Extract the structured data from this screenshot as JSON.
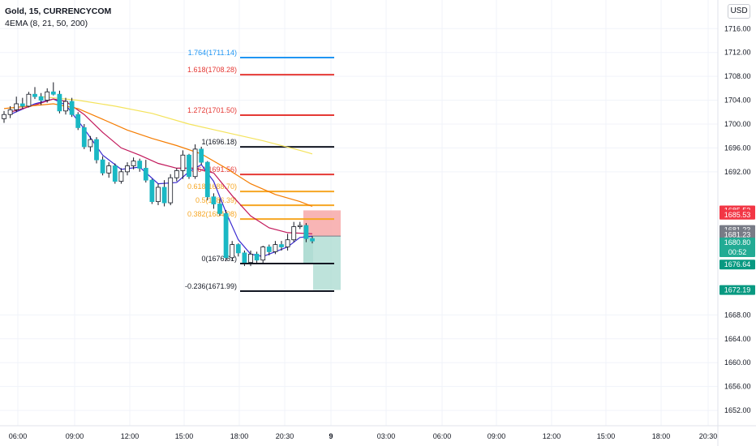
{
  "header": {
    "symbol_title": "Gold, 15, CURRENCYCOM",
    "indicator": "4EMA (8, 21, 50, 200)",
    "currency": "USD"
  },
  "chart_data": {
    "type": "candlestick",
    "y_range": [
      1649.5,
      1718.5
    ],
    "y_ticks": [
      1716,
      1712,
      1708,
      1704,
      1700,
      1696,
      1692,
      1668,
      1664,
      1660,
      1656,
      1652
    ],
    "x_ticks": [
      "06:00",
      "09:00",
      "12:00",
      "15:00",
      "18:00",
      "20:30",
      "9",
      "03:00",
      "06:00",
      "09:00",
      "12:00",
      "15:00",
      "18:00",
      "20:30"
    ],
    "grid": true,
    "candles": [
      [
        1700.9,
        1702.2,
        1700.2,
        1701.6
      ],
      [
        1701.6,
        1703.0,
        1701.0,
        1702.4
      ],
      [
        1702.4,
        1704.6,
        1702.0,
        1703.4
      ],
      [
        1703.4,
        1704.4,
        1702.6,
        1703.0
      ],
      [
        1703.0,
        1705.4,
        1702.8,
        1705.0
      ],
      [
        1705.0,
        1706.2,
        1704.2,
        1704.6
      ],
      [
        1704.6,
        1705.2,
        1703.2,
        1704.0
      ],
      [
        1704.0,
        1706.0,
        1703.6,
        1705.4
      ],
      [
        1705.4,
        1707.0,
        1704.8,
        1705.0
      ],
      [
        1705.0,
        1705.6,
        1701.8,
        1702.2
      ],
      [
        1702.2,
        1704.4,
        1701.6,
        1703.8
      ],
      [
        1703.8,
        1704.4,
        1701.2,
        1701.6
      ],
      [
        1701.6,
        1702.0,
        1699.0,
        1699.4
      ],
      [
        1699.4,
        1700.0,
        1695.8,
        1696.2
      ],
      [
        1696.2,
        1698.0,
        1695.4,
        1697.4
      ],
      [
        1697.4,
        1697.8,
        1693.4,
        1694.0
      ],
      [
        1694.0,
        1694.6,
        1691.4,
        1691.8
      ],
      [
        1691.8,
        1693.6,
        1691.0,
        1693.0
      ],
      [
        1693.0,
        1693.4,
        1690.0,
        1690.4
      ],
      [
        1690.4,
        1692.6,
        1690.0,
        1692.0
      ],
      [
        1692.0,
        1693.6,
        1691.4,
        1693.0
      ],
      [
        1693.0,
        1694.4,
        1692.4,
        1693.8
      ],
      [
        1693.8,
        1694.2,
        1692.0,
        1692.6
      ],
      [
        1692.6,
        1694.0,
        1690.2,
        1690.6
      ],
      [
        1690.6,
        1690.8,
        1686.6,
        1687.0
      ],
      [
        1687.0,
        1690.0,
        1686.4,
        1689.4
      ],
      [
        1689.4,
        1690.6,
        1686.2,
        1686.8
      ],
      [
        1686.8,
        1691.6,
        1686.4,
        1691.0
      ],
      [
        1691.0,
        1692.6,
        1690.4,
        1692.2
      ],
      [
        1692.2,
        1695.6,
        1690.8,
        1694.8
      ],
      [
        1694.8,
        1695.0,
        1690.8,
        1691.2
      ],
      [
        1691.2,
        1696.6,
        1690.8,
        1695.8
      ],
      [
        1695.8,
        1696.2,
        1693.2,
        1693.6
      ],
      [
        1693.6,
        1693.8,
        1687.2,
        1687.8
      ],
      [
        1687.8,
        1688.4,
        1685.8,
        1686.6
      ],
      [
        1686.6,
        1687.4,
        1684.6,
        1685.0
      ],
      [
        1685.0,
        1685.6,
        1677.0,
        1677.6
      ],
      [
        1677.6,
        1680.4,
        1677.2,
        1679.8
      ],
      [
        1679.8,
        1680.0,
        1677.8,
        1678.4
      ],
      [
        1678.4,
        1678.8,
        1676.2,
        1676.8
      ],
      [
        1676.8,
        1678.8,
        1676.2,
        1678.2
      ],
      [
        1678.2,
        1678.6,
        1676.6,
        1677.2
      ],
      [
        1677.2,
        1679.6,
        1676.6,
        1679.4
      ],
      [
        1679.4,
        1679.8,
        1678.0,
        1678.6
      ],
      [
        1678.6,
        1680.4,
        1678.2,
        1679.8
      ],
      [
        1679.8,
        1680.4,
        1678.8,
        1679.4
      ],
      [
        1679.4,
        1681.6,
        1678.8,
        1680.6
      ],
      [
        1680.6,
        1683.6,
        1680.2,
        1682.8
      ],
      [
        1682.8,
        1683.6,
        1682.4,
        1683.0
      ],
      [
        1683.0,
        1683.4,
        1680.2,
        1680.8
      ],
      [
        1680.8,
        1681.2,
        1680.0,
        1680.4
      ]
    ],
    "ema_series": [
      {
        "name": "EMA 8",
        "color": "#3b2bd1",
        "points": [
          [
            1,
            1701.6
          ],
          [
            5,
            1703.4
          ],
          [
            8,
            1704.2
          ],
          [
            10,
            1703.2
          ],
          [
            13,
            1699.2
          ],
          [
            16,
            1694.8
          ],
          [
            19,
            1692.4
          ],
          [
            22,
            1692.8
          ],
          [
            25,
            1690.0
          ],
          [
            28,
            1690.2
          ],
          [
            30,
            1692.0
          ],
          [
            32,
            1693.2
          ],
          [
            34,
            1690.4
          ],
          [
            36,
            1685.2
          ],
          [
            38,
            1680.6
          ],
          [
            40,
            1678.2
          ],
          [
            42,
            1677.8
          ],
          [
            44,
            1678.6
          ],
          [
            46,
            1679.4
          ],
          [
            48,
            1681.0
          ],
          [
            50,
            1681.2
          ]
        ]
      },
      {
        "name": "EMA 21",
        "color": "#c2185b",
        "points": [
          [
            1,
            1702.0
          ],
          [
            5,
            1703.2
          ],
          [
            8,
            1704.2
          ],
          [
            10,
            1703.8
          ],
          [
            13,
            1701.6
          ],
          [
            16,
            1698.6
          ],
          [
            19,
            1696.0
          ],
          [
            22,
            1694.8
          ],
          [
            25,
            1693.4
          ],
          [
            28,
            1692.6
          ],
          [
            31,
            1692.6
          ],
          [
            34,
            1691.8
          ],
          [
            37,
            1688.0
          ],
          [
            40,
            1684.6
          ],
          [
            43,
            1682.6
          ],
          [
            46,
            1681.8
          ],
          [
            50,
            1681.6
          ]
        ]
      },
      {
        "name": "EMA 50",
        "color": "#f57c00",
        "points": [
          [
            0,
            1702.6
          ],
          [
            4,
            1703.0
          ],
          [
            8,
            1703.4
          ],
          [
            12,
            1702.6
          ],
          [
            16,
            1700.8
          ],
          [
            20,
            1699.0
          ],
          [
            24,
            1697.6
          ],
          [
            28,
            1696.4
          ],
          [
            32,
            1695.0
          ],
          [
            36,
            1692.6
          ],
          [
            40,
            1690.0
          ],
          [
            44,
            1688.2
          ],
          [
            48,
            1687.0
          ],
          [
            50,
            1686.2
          ]
        ]
      },
      {
        "name": "EMA 200",
        "color": "#f4e35c",
        "points": [
          [
            6,
            1704.6
          ],
          [
            12,
            1704.0
          ],
          [
            18,
            1703.0
          ],
          [
            24,
            1701.8
          ],
          [
            30,
            1700.0
          ],
          [
            36,
            1698.6
          ],
          [
            42,
            1697.2
          ],
          [
            48,
            1695.6
          ],
          [
            50,
            1695.0
          ]
        ]
      }
    ],
    "fib_levels": [
      {
        "label": "1.764(1711.14)",
        "price": 1711.14,
        "color": "#2196f3"
      },
      {
        "label": "1.618(1708.28)",
        "price": 1708.28,
        "color": "#e53935"
      },
      {
        "label": "1.272(1701.50)",
        "price": 1701.5,
        "color": "#e53935"
      },
      {
        "label": "1(1696.18)",
        "price": 1696.18,
        "color": "#131722"
      },
      {
        "label": "0.764(1691.56)",
        "price": 1691.56,
        "color": "#e53935"
      },
      {
        "label": "0.618(1688.70)",
        "price": 1688.7,
        "color": "#f6a623"
      },
      {
        "label": "0.5(1686.39)",
        "price": 1686.39,
        "color": "#f6a623"
      },
      {
        "label": "0.382(1684.08)",
        "price": 1684.08,
        "color": "#f6a623"
      },
      {
        "label": "0(1676.61)",
        "price": 1676.61,
        "color": "#131722"
      },
      {
        "label": "-0.236(1671.99)",
        "price": 1671.99,
        "color": "#131722"
      }
    ],
    "position_zone": {
      "stop": 1685.53,
      "entry": 1681.23,
      "target": 1672.19,
      "inner_target": 1676.64
    },
    "price_tags": [
      {
        "text": "1685.53",
        "price": 1685.53,
        "bg": "#f23645",
        "fg": "#ffffff"
      },
      {
        "text": "1685.53",
        "price": 1684.8,
        "bg": "#f23645",
        "fg": "#ffffff"
      },
      {
        "text": "1681.23",
        "price": 1682.25,
        "bg": "#787b86",
        "fg": "#ffffff"
      },
      {
        "text": "1681.23",
        "price": 1681.45,
        "bg": "#787b86",
        "fg": "#ffffff"
      },
      {
        "text": "1680.80",
        "price": 1680.15,
        "bg": "#22ab94",
        "fg": "#ffffff",
        "countdown": "00:52"
      },
      {
        "text": "1676.64",
        "price": 1676.45,
        "bg": "#089981",
        "fg": "#ffffff"
      },
      {
        "text": "1672.19",
        "price": 1672.19,
        "bg": "#089981",
        "fg": "#ffffff"
      }
    ]
  }
}
